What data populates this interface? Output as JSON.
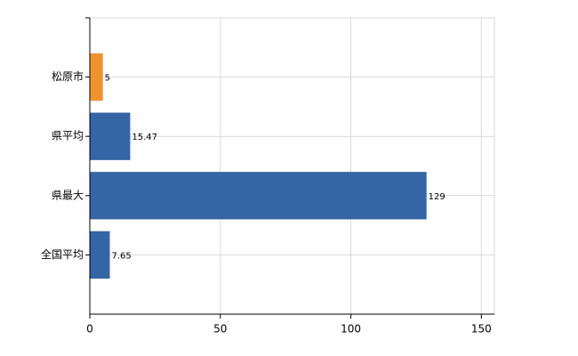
{
  "chart_data": {
    "type": "barh",
    "categories": [
      "松原市",
      "県平均",
      "県最大",
      "全国平均"
    ],
    "values": [
      5,
      15.47,
      129,
      7.65
    ],
    "colors": [
      "#f0922e",
      "#3465a4",
      "#3465a4",
      "#3465a4"
    ],
    "xlim": [
      0,
      155
    ],
    "xticks": [
      0,
      50,
      100,
      150
    ],
    "grid": true
  }
}
